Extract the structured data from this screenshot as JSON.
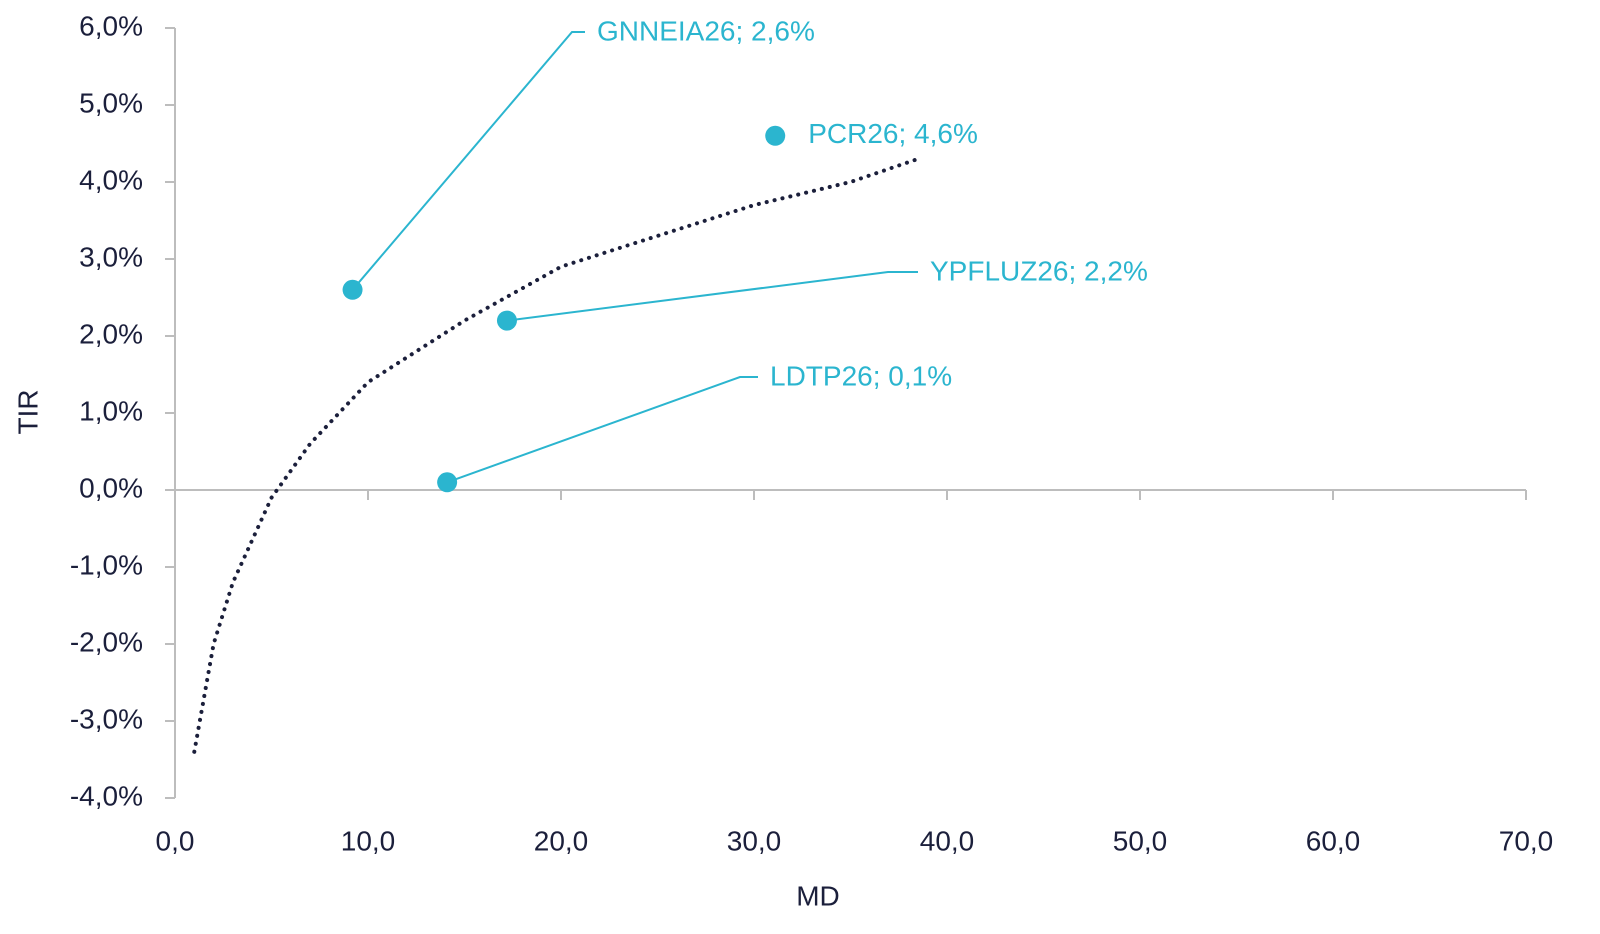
{
  "chart_data": {
    "type": "scatter",
    "x_label": "MD",
    "y_label": "TIR",
    "x": [
      9.2,
      31.1,
      17.2,
      14.1
    ],
    "values": [
      2.6,
      4.6,
      2.2,
      0.1
    ],
    "value_labels": [
      "GNNEIA26; 2,6%",
      "PCR26; 4,6%",
      "YPFLUZ26; 2,2%",
      "LDTP26; 0,1%"
    ],
    "color": "#2bb5cf",
    "trendline": {
      "color": "#1b1f3b",
      "x": [
        1,
        2,
        3,
        5,
        7,
        10,
        15,
        20,
        25,
        30,
        35,
        38.5
      ],
      "values": [
        -3.4,
        -2.0,
        -1.2,
        -0.1,
        0.6,
        1.4,
        2.2,
        2.9,
        3.3,
        3.7,
        4.0,
        4.3
      ]
    },
    "xlim": [
      0,
      70
    ],
    "xticks": [
      {
        "value": 0,
        "label": "0,0"
      },
      {
        "value": 10,
        "label": "10,0"
      },
      {
        "value": 20,
        "label": "20,0"
      },
      {
        "value": 30,
        "label": "30,0"
      },
      {
        "value": 40,
        "label": "40,0"
      },
      {
        "value": 50,
        "label": "50,0"
      },
      {
        "value": 60,
        "label": "60,0"
      },
      {
        "value": 70,
        "label": "70,0"
      }
    ],
    "ylim": [
      -4,
      6
    ],
    "yticks": [
      {
        "value": -4,
        "label": "-4,0%"
      },
      {
        "value": -3,
        "label": "-3,0%"
      },
      {
        "value": -2,
        "label": "-2,0%"
      },
      {
        "value": -1,
        "label": "-1,0%"
      },
      {
        "value": 0,
        "label": "0,0%"
      },
      {
        "value": 1,
        "label": "1,0%"
      },
      {
        "value": 2,
        "label": "2,0%"
      },
      {
        "value": 3,
        "label": "3,0%"
      },
      {
        "value": 4,
        "label": "4,0%"
      },
      {
        "value": 5,
        "label": "5,0%"
      },
      {
        "value": 6,
        "label": "6,0%"
      }
    ]
  }
}
